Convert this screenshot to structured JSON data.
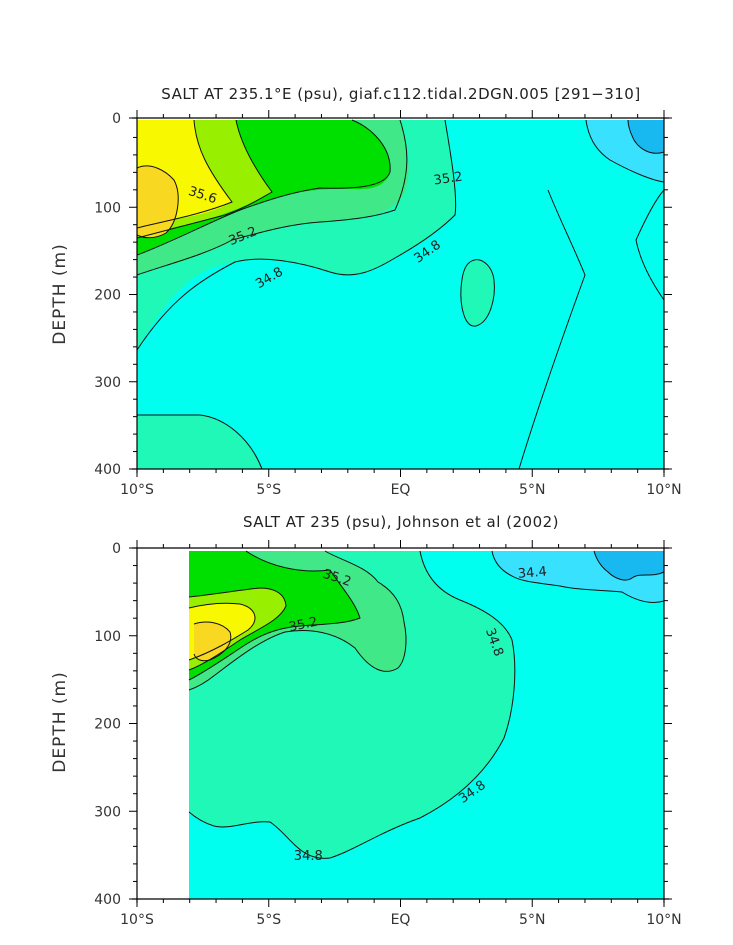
{
  "colors": {
    "c_le_34_4": "#18b8f0",
    "c_34_4_34_6": "#38e2ff",
    "c_34_6_34_8": "#00ffee",
    "c_34_8_35_0": "#20f8b8",
    "c_35_0_35_2": "#40e888",
    "c_35_2_35_4": "#00e000",
    "c_35_4_35_6": "#98f000",
    "c_35_6_35_8": "#f8f800",
    "c_ge_35_8": "#f8d820",
    "contour_line": "#111111",
    "axis": "#000000"
  },
  "chart_data": [
    {
      "type": "contour",
      "title": "SALT AT 235.1°E (psu), giaf.c112.tidal.2DGN.005 [291−310]",
      "ylabel": "DEPTH (m)",
      "xlabel": "",
      "x_ticklabels": [
        "10°S",
        "5°S",
        "EQ",
        "5°N",
        "10°N"
      ],
      "x_values": [
        -10,
        -5,
        0,
        5,
        10
      ],
      "xlim": [
        -10,
        10
      ],
      "y_ticklabels": [
        "0",
        "100",
        "200",
        "300",
        "400"
      ],
      "y_values": [
        0,
        100,
        200,
        300,
        400
      ],
      "ylim": [
        400,
        0
      ],
      "y_inverted": true,
      "contour_interval": 0.2,
      "contour_labels": [
        {
          "text": "35.6",
          "lat": -7.5,
          "depth": 85,
          "rot": 18
        },
        {
          "text": "35.2",
          "lat": 1.8,
          "depth": 66,
          "rot": -8
        },
        {
          "text": "35.2",
          "lat": -6.0,
          "depth": 132,
          "rot": -22
        },
        {
          "text": "34.8",
          "lat": -5.0,
          "depth": 180,
          "rot": -30
        },
        {
          "text": "34.8",
          "lat": 1.0,
          "depth": 150,
          "rot": -35
        }
      ]
    },
    {
      "type": "contour",
      "title": "SALT AT 235 (psu), Johnson et al (2002)",
      "ylabel": "DEPTH (m)",
      "xlabel": "",
      "x_ticklabels": [
        "10°S",
        "5°S",
        "EQ",
        "5°N",
        "10°N"
      ],
      "x_values": [
        -10,
        -5,
        0,
        5,
        10
      ],
      "xlim": [
        -10,
        10
      ],
      "y_ticklabels": [
        "0",
        "100",
        "200",
        "300",
        "400"
      ],
      "y_values": [
        0,
        100,
        200,
        300,
        400
      ],
      "ylim": [
        400,
        0
      ],
      "y_inverted": true,
      "data_start_lat": -8,
      "contour_interval": 0.2,
      "contour_labels": [
        {
          "text": "35.2",
          "lat": -2.4,
          "depth": 33,
          "rot": 18
        },
        {
          "text": "35.2",
          "lat": -3.7,
          "depth": 86,
          "rot": -12
        },
        {
          "text": "34.4",
          "lat": 5.0,
          "depth": 27,
          "rot": -5
        },
        {
          "text": "34.8",
          "lat": 3.6,
          "depth": 107,
          "rot": 70
        },
        {
          "text": "34.8",
          "lat": 2.7,
          "depth": 277,
          "rot": -35
        },
        {
          "text": "34.8",
          "lat": -3.5,
          "depth": 350,
          "rot": 0
        }
      ]
    }
  ]
}
